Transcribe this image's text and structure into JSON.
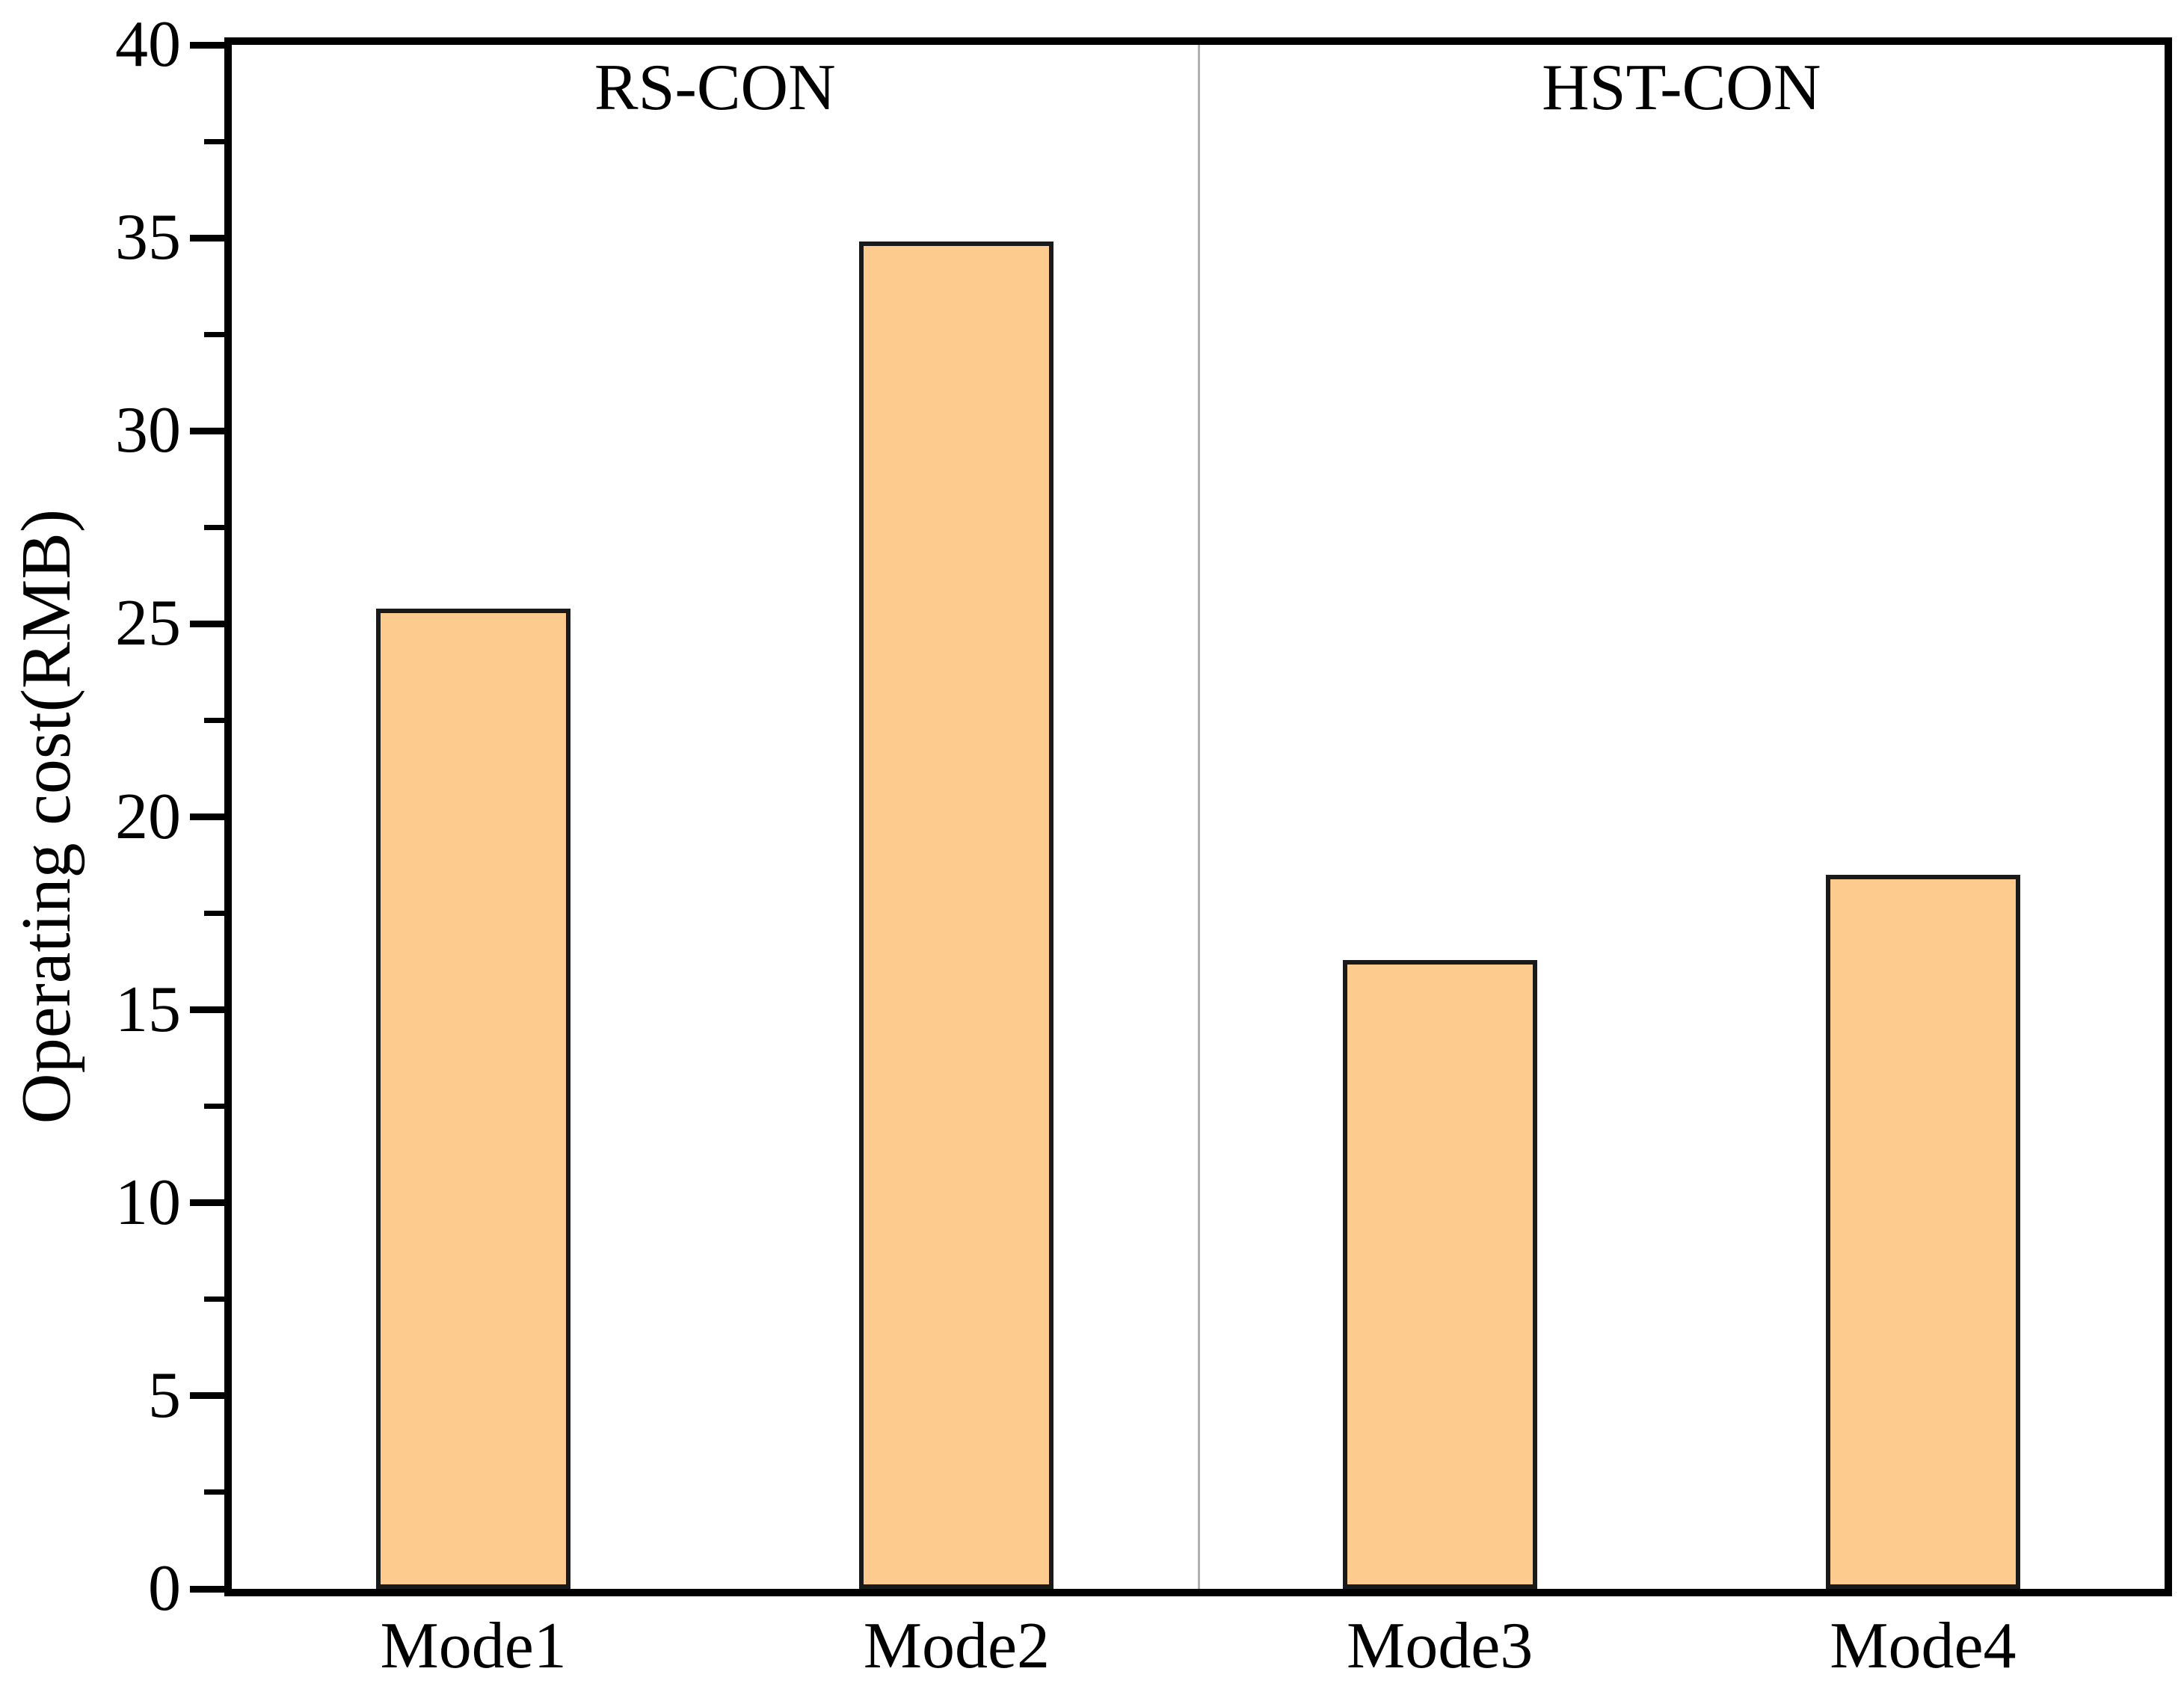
{
  "figure": {
    "background_color": "#ffffff",
    "text_color": "#000000"
  },
  "chart_data": {
    "type": "bar",
    "title": "",
    "xlabel": "",
    "ylabel": "Operating cost(RMB)",
    "categories": [
      "Mode1",
      "Mode2",
      "Mode3",
      "Mode4"
    ],
    "values": [
      25.4,
      34.9,
      16.3,
      18.5
    ],
    "ylim": [
      0,
      40
    ],
    "yticks": [
      0,
      5,
      10,
      15,
      20,
      25,
      30,
      35,
      40
    ],
    "yminor_step": 2.5,
    "grid": "off",
    "legend": "none",
    "groups": [
      {
        "label": "RS-CON",
        "categories": [
          "Mode1",
          "Mode2"
        ]
      },
      {
        "label": "HST-CON",
        "categories": [
          "Mode3",
          "Mode4"
        ]
      }
    ],
    "bar_fill_color": "#fdcb8e",
    "bar_edge_color": "#1a1a1a",
    "axis_color": "#000000",
    "divider_color": "#b0b0b0"
  }
}
